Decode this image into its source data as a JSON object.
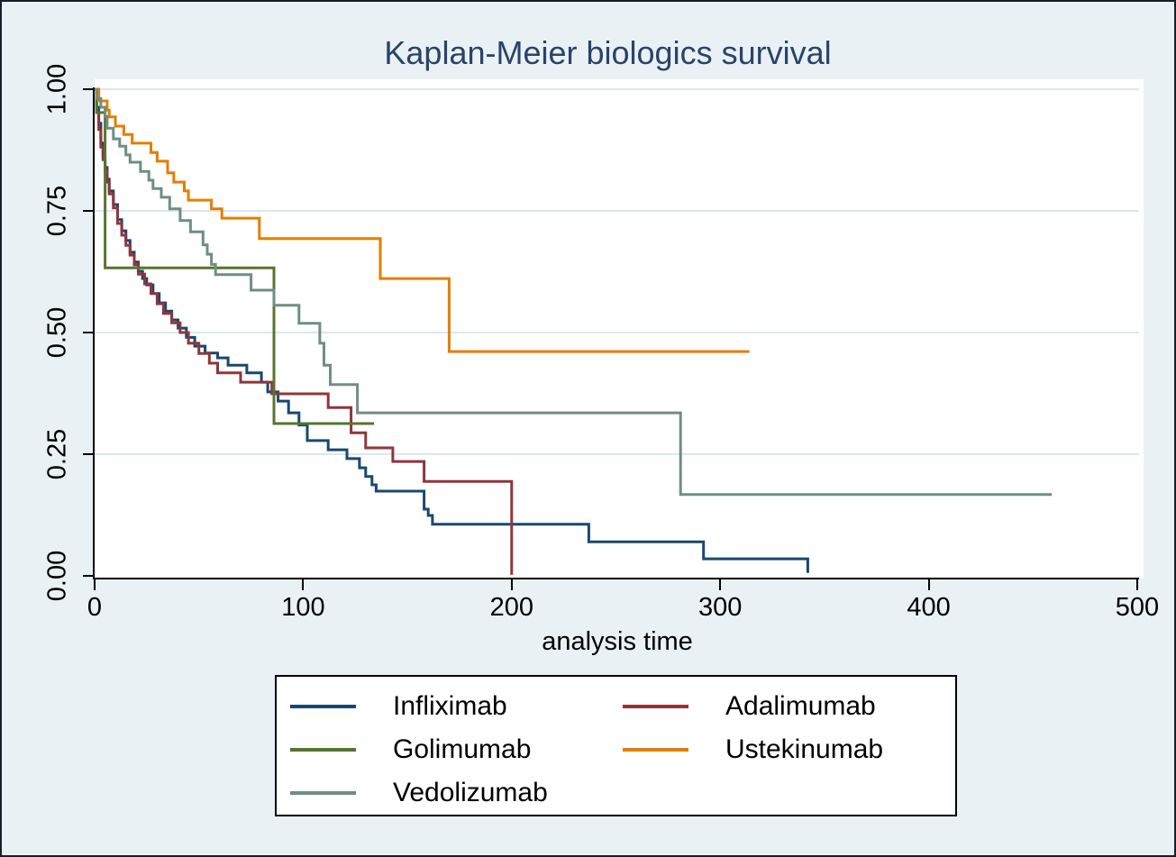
{
  "title": "Kaplan-Meier biologics survival",
  "colors": {
    "background": "#e9f1f4",
    "plot_background": "#ffffff",
    "gridline": "#d9e8ee",
    "axis": "#000000",
    "title_text": "#2a4369",
    "infliximab": "#1a476f",
    "adalimumab": "#90353b",
    "golimumab": "#55752f",
    "ustekinumab": "#e37e00",
    "vedolizumab": "#6e8e84"
  },
  "legend": {
    "items": [
      {
        "label": "Infliximab",
        "color": "#1a476f"
      },
      {
        "label": "Adalimumab",
        "color": "#90353b"
      },
      {
        "label": "Golimumab",
        "color": "#55752f"
      },
      {
        "label": "Ustekinumab",
        "color": "#e37e00"
      },
      {
        "label": "Vedolizumab",
        "color": "#6e8e84"
      }
    ]
  },
  "chart_data": {
    "type": "line",
    "subtype": "kaplan-meier-step",
    "title": "Kaplan-Meier biologics survival",
    "xlabel": "analysis time",
    "ylabel": "",
    "xlim": [
      0,
      500
    ],
    "ylim": [
      0,
      1
    ],
    "x_ticks": [
      0,
      100,
      200,
      300,
      400,
      500
    ],
    "x_tick_labels": [
      "0",
      "100",
      "200",
      "300",
      "400",
      "500"
    ],
    "y_ticks": [
      0,
      0.25,
      0.5,
      0.75,
      1
    ],
    "y_tick_labels": [
      "0.00",
      "0.25",
      "0.50",
      "0.75",
      "1.00"
    ],
    "grid": true,
    "legend_position": "bottom",
    "series": [
      {
        "name": "Infliximab",
        "color": "#1a476f",
        "end_t": 342,
        "points": [
          [
            0,
            1
          ],
          [
            1,
            0.963
          ],
          [
            2,
            0.93
          ],
          [
            3,
            0.889
          ],
          [
            4,
            0.861
          ],
          [
            5,
            0.839
          ],
          [
            6,
            0.815
          ],
          [
            7,
            0.791
          ],
          [
            9,
            0.763
          ],
          [
            11,
            0.732
          ],
          [
            13,
            0.709
          ],
          [
            15,
            0.689
          ],
          [
            17,
            0.665
          ],
          [
            19,
            0.645
          ],
          [
            21,
            0.626
          ],
          [
            23,
            0.611
          ],
          [
            25,
            0.598
          ],
          [
            28,
            0.58
          ],
          [
            31,
            0.561
          ],
          [
            34,
            0.544
          ],
          [
            37,
            0.526
          ],
          [
            40,
            0.509
          ],
          [
            44,
            0.49
          ],
          [
            48,
            0.472
          ],
          [
            53,
            0.458
          ],
          [
            59,
            0.448
          ],
          [
            64,
            0.433
          ],
          [
            73,
            0.417
          ],
          [
            80,
            0.398
          ],
          [
            83,
            0.378
          ],
          [
            88,
            0.359
          ],
          [
            93,
            0.335
          ],
          [
            98,
            0.31
          ],
          [
            102,
            0.278
          ],
          [
            112,
            0.259
          ],
          [
            121,
            0.241
          ],
          [
            127,
            0.222
          ],
          [
            130,
            0.204
          ],
          [
            133,
            0.187
          ],
          [
            135,
            0.174
          ],
          [
            158,
            0.137
          ],
          [
            160,
            0.124
          ],
          [
            162,
            0.106
          ],
          [
            237,
            0.07
          ],
          [
            292,
            0.035
          ],
          [
            342,
            0.006
          ]
        ]
      },
      {
        "name": "Adalimumab",
        "color": "#90353b",
        "end_t": 200,
        "points": [
          [
            0,
            1
          ],
          [
            1,
            0.952
          ],
          [
            2,
            0.917
          ],
          [
            3,
            0.881
          ],
          [
            4,
            0.855
          ],
          [
            5,
            0.833
          ],
          [
            6,
            0.809
          ],
          [
            7,
            0.785
          ],
          [
            9,
            0.756
          ],
          [
            11,
            0.724
          ],
          [
            13,
            0.7
          ],
          [
            15,
            0.679
          ],
          [
            17,
            0.659
          ],
          [
            19,
            0.639
          ],
          [
            21,
            0.62
          ],
          [
            24,
            0.6
          ],
          [
            27,
            0.58
          ],
          [
            30,
            0.559
          ],
          [
            33,
            0.539
          ],
          [
            37,
            0.52
          ],
          [
            41,
            0.5
          ],
          [
            45,
            0.478
          ],
          [
            50,
            0.457
          ],
          [
            55,
            0.437
          ],
          [
            59,
            0.417
          ],
          [
            70,
            0.398
          ],
          [
            85,
            0.374
          ],
          [
            112,
            0.346
          ],
          [
            123,
            0.294
          ],
          [
            130,
            0.263
          ],
          [
            143,
            0.235
          ],
          [
            158,
            0.194
          ],
          [
            200,
            0.002
          ]
        ]
      },
      {
        "name": "Golimumab",
        "color": "#55752f",
        "end_t": 134,
        "points": [
          [
            0,
            1
          ],
          [
            1,
            0.952
          ],
          [
            5,
            0.633
          ],
          [
            86,
            0.313
          ]
        ]
      },
      {
        "name": "Ustekinumab",
        "color": "#e37e00",
        "end_t": 314,
        "points": [
          [
            0,
            1
          ],
          [
            2,
            0.976
          ],
          [
            6,
            0.957
          ],
          [
            7,
            0.943
          ],
          [
            10,
            0.924
          ],
          [
            14,
            0.907
          ],
          [
            18,
            0.889
          ],
          [
            27,
            0.87
          ],
          [
            30,
            0.852
          ],
          [
            35,
            0.828
          ],
          [
            38,
            0.809
          ],
          [
            43,
            0.791
          ],
          [
            45,
            0.772
          ],
          [
            56,
            0.754
          ],
          [
            61,
            0.735
          ],
          [
            79,
            0.693
          ],
          [
            137,
            0.611
          ],
          [
            170,
            0.461
          ]
        ]
      },
      {
        "name": "Vedolizumab",
        "color": "#6e8e84",
        "end_t": 459,
        "points": [
          [
            0,
            1
          ],
          [
            1,
            0.981
          ],
          [
            3,
            0.963
          ],
          [
            5,
            0.944
          ],
          [
            6,
            0.92
          ],
          [
            9,
            0.898
          ],
          [
            12,
            0.883
          ],
          [
            15,
            0.865
          ],
          [
            17,
            0.85
          ],
          [
            22,
            0.831
          ],
          [
            26,
            0.813
          ],
          [
            28,
            0.796
          ],
          [
            32,
            0.778
          ],
          [
            36,
            0.754
          ],
          [
            41,
            0.73
          ],
          [
            46,
            0.707
          ],
          [
            52,
            0.68
          ],
          [
            54,
            0.661
          ],
          [
            56,
            0.64
          ],
          [
            58,
            0.619
          ],
          [
            75,
            0.587
          ],
          [
            86,
            0.556
          ],
          [
            98,
            0.519
          ],
          [
            108,
            0.478
          ],
          [
            110,
            0.433
          ],
          [
            113,
            0.393
          ],
          [
            126,
            0.335
          ],
          [
            281,
            0.167
          ]
        ]
      }
    ]
  }
}
